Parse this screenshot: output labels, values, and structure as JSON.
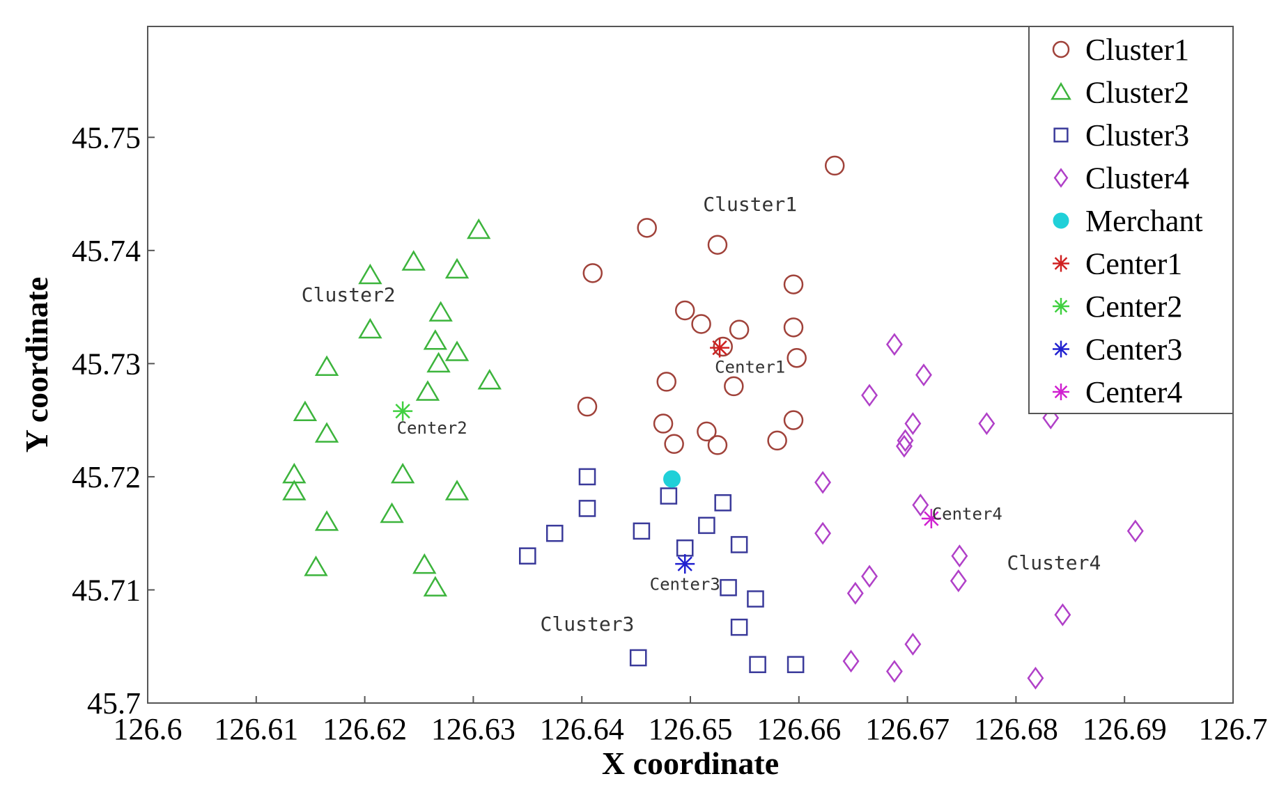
{
  "chart_data": {
    "type": "scatter",
    "xlabel": "X coordinate",
    "ylabel": "Y coordinate",
    "xlim": [
      126.6,
      126.7
    ],
    "ylim": [
      45.7,
      45.76
    ],
    "x_ticks": [
      "126.6",
      "126.61",
      "126.62",
      "126.63",
      "126.64",
      "126.65",
      "126.66",
      "126.67",
      "126.68",
      "126.69",
      "126.7"
    ],
    "y_ticks": [
      "45.7",
      "45.71",
      "45.72",
      "45.73",
      "45.74",
      "45.75"
    ],
    "grid": false,
    "legend_position": "top-right",
    "series": [
      {
        "name": "Cluster1",
        "marker": "circle",
        "color": "#a0423a",
        "points": [
          [
            126.6633,
            45.7475
          ],
          [
            126.646,
            45.742
          ],
          [
            126.6525,
            45.7405
          ],
          [
            126.641,
            45.738
          ],
          [
            126.6595,
            45.737
          ],
          [
            126.6495,
            45.7347
          ],
          [
            126.651,
            45.7335
          ],
          [
            126.6595,
            45.7332
          ],
          [
            126.6545,
            45.733
          ],
          [
            126.653,
            45.7315
          ],
          [
            126.6598,
            45.7305
          ],
          [
            126.6478,
            45.7284
          ],
          [
            126.654,
            45.728
          ],
          [
            126.6405,
            45.7262
          ],
          [
            126.6595,
            45.725
          ],
          [
            126.6475,
            45.7247
          ],
          [
            126.6515,
            45.724
          ],
          [
            126.6485,
            45.7229
          ],
          [
            126.6525,
            45.7228
          ],
          [
            126.658,
            45.7232
          ]
        ]
      },
      {
        "name": "Cluster2",
        "marker": "triangle",
        "color": "#3cb43c",
        "points": [
          [
            126.6305,
            45.7418
          ],
          [
            126.6245,
            45.739
          ],
          [
            126.6205,
            45.7378
          ],
          [
            126.6285,
            45.7383
          ],
          [
            126.627,
            45.7345
          ],
          [
            126.6205,
            45.733
          ],
          [
            126.6265,
            45.732
          ],
          [
            126.6165,
            45.7297
          ],
          [
            126.6285,
            45.731
          ],
          [
            126.6268,
            45.73
          ],
          [
            126.6315,
            45.7285
          ],
          [
            126.6258,
            45.7275
          ],
          [
            126.6145,
            45.7257
          ],
          [
            126.6165,
            45.7238
          ],
          [
            126.6135,
            45.7202
          ],
          [
            126.6235,
            45.7202
          ],
          [
            126.6135,
            45.7187
          ],
          [
            126.6285,
            45.7187
          ],
          [
            126.6225,
            45.7167
          ],
          [
            126.6165,
            45.716
          ],
          [
            126.6155,
            45.712
          ],
          [
            126.6255,
            45.7122
          ],
          [
            126.6265,
            45.7102
          ]
        ]
      },
      {
        "name": "Cluster3",
        "marker": "square",
        "color": "#3a3a9a",
        "points": [
          [
            126.6405,
            45.72
          ],
          [
            126.648,
            45.7183
          ],
          [
            126.6405,
            45.7172
          ],
          [
            126.653,
            45.7177
          ],
          [
            126.6515,
            45.7157
          ],
          [
            126.6375,
            45.715
          ],
          [
            126.6455,
            45.7152
          ],
          [
            126.6545,
            45.714
          ],
          [
            126.6495,
            45.7137
          ],
          [
            126.635,
            45.713
          ],
          [
            126.6535,
            45.7102
          ],
          [
            126.656,
            45.7092
          ],
          [
            126.6545,
            45.7067
          ],
          [
            126.6452,
            45.704
          ],
          [
            126.6562,
            45.7034
          ],
          [
            126.6597,
            45.7034
          ]
        ]
      },
      {
        "name": "Cluster4",
        "marker": "diamond",
        "color": "#b040c8",
        "points": [
          [
            126.6688,
            45.7317
          ],
          [
            126.6715,
            45.729
          ],
          [
            126.6665,
            45.7272
          ],
          [
            126.6705,
            45.7247
          ],
          [
            126.6773,
            45.7247
          ],
          [
            126.6832,
            45.7252
          ],
          [
            126.6698,
            45.7232
          ],
          [
            126.6697,
            45.7227
          ],
          [
            126.6622,
            45.7195
          ],
          [
            126.6712,
            45.7175
          ],
          [
            126.6622,
            45.715
          ],
          [
            126.691,
            45.7152
          ],
          [
            126.6748,
            45.713
          ],
          [
            126.6665,
            45.7112
          ],
          [
            126.6747,
            45.7108
          ],
          [
            126.6652,
            45.7097
          ],
          [
            126.6843,
            45.7078
          ],
          [
            126.6705,
            45.7052
          ],
          [
            126.6648,
            45.7037
          ],
          [
            126.6688,
            45.7028
          ],
          [
            126.6818,
            45.7022
          ]
        ]
      },
      {
        "name": "Merchant",
        "marker": "filled-circle",
        "color": "#20d0d8",
        "points": [
          [
            126.6483,
            45.7198
          ]
        ]
      },
      {
        "name": "Center1",
        "marker": "star",
        "color": "#d02020",
        "points": [
          [
            126.6527,
            45.7314
          ]
        ]
      },
      {
        "name": "Center2",
        "marker": "star",
        "color": "#40d040",
        "points": [
          [
            126.6235,
            45.7258
          ]
        ]
      },
      {
        "name": "Center3",
        "marker": "star",
        "color": "#2020d0",
        "points": [
          [
            126.6495,
            45.7123
          ]
        ]
      },
      {
        "name": "Center4",
        "marker": "star",
        "color": "#d020d0",
        "points": [
          [
            126.6722,
            45.7163
          ]
        ]
      }
    ],
    "annotations": [
      {
        "text": "Cluster1",
        "x": 126.6555,
        "y": 45.7435
      },
      {
        "text": "Cluster2",
        "x": 126.6185,
        "y": 45.7355
      },
      {
        "text": "Cluster3",
        "x": 126.6405,
        "y": 45.7064
      },
      {
        "text": "Cluster4",
        "x": 126.6835,
        "y": 45.7118
      },
      {
        "text": "Center1",
        "x": 126.6555,
        "y": 45.7292
      },
      {
        "text": "Center2",
        "x": 126.6262,
        "y": 45.7238
      },
      {
        "text": "Center3",
        "x": 126.6495,
        "y": 45.71
      },
      {
        "text": "Center4",
        "x": 126.6755,
        "y": 45.7162
      }
    ]
  }
}
